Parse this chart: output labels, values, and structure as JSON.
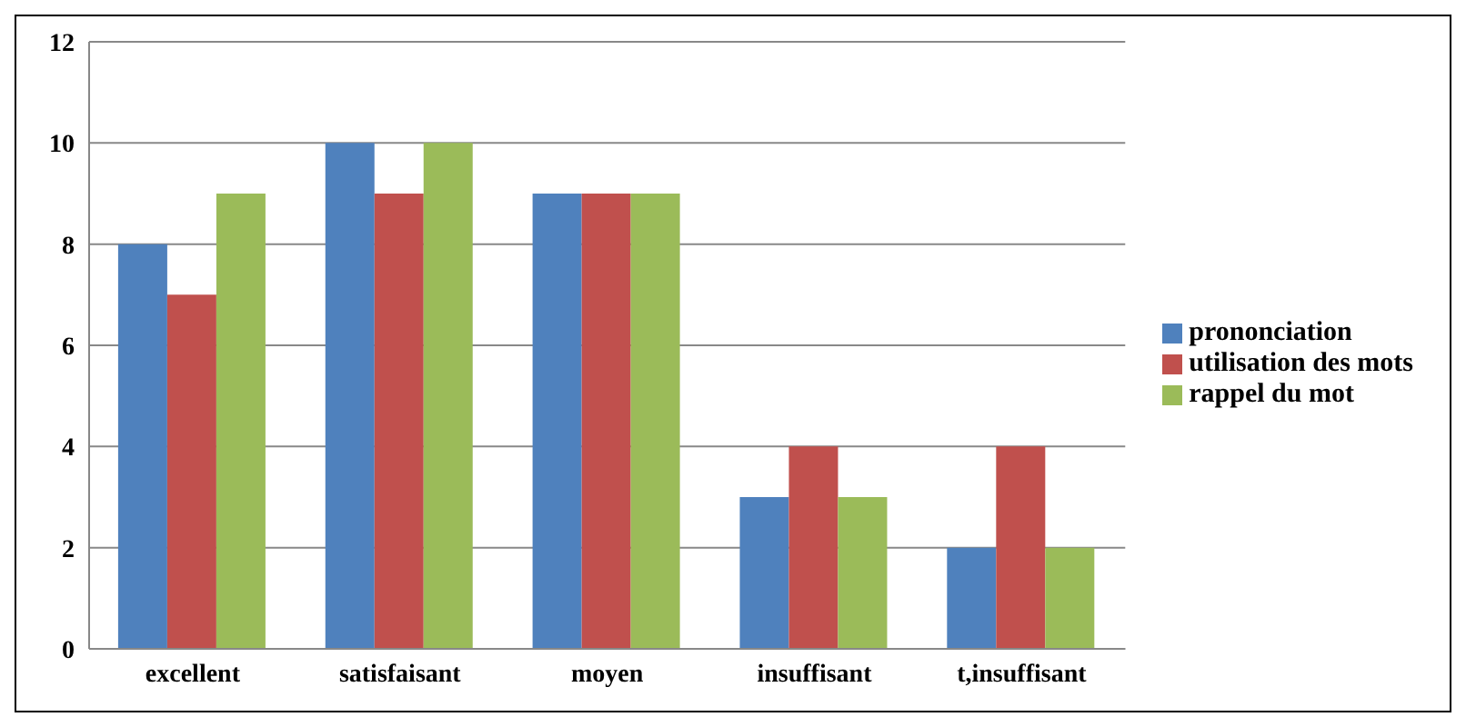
{
  "chart_data": {
    "type": "bar",
    "categories": [
      "excellent",
      "satisfaisant",
      "moyen",
      "insuffisant",
      "t,insuffisant"
    ],
    "series": [
      {
        "name": "prononciation",
        "color": "#4f81bd",
        "values": [
          8,
          10,
          9,
          3,
          2
        ]
      },
      {
        "name": "utilisation des mots",
        "color": "#c0504d",
        "values": [
          7,
          9,
          9,
          4,
          4
        ]
      },
      {
        "name": "rappel du mot",
        "color": "#9bbb59",
        "values": [
          9,
          10,
          9,
          3,
          2
        ]
      }
    ],
    "ylim": [
      0,
      12
    ],
    "yticks": [
      0,
      2,
      4,
      6,
      8,
      10,
      12
    ],
    "grid": "y",
    "legend": "right"
  }
}
